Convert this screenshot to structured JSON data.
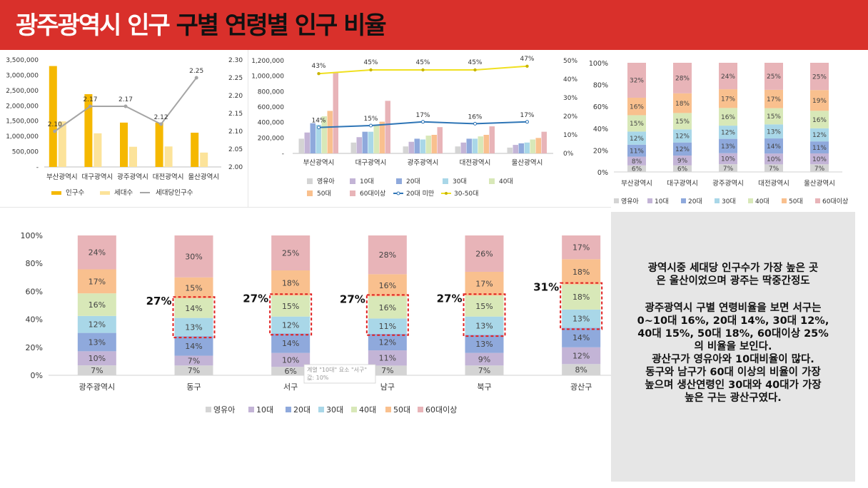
{
  "header": {
    "title_white": "광주광역시 인구",
    "title_dark": "구별 연령별 인구 비율"
  },
  "colors": {
    "banner": "#d9302b",
    "pop": "#f5b800",
    "hh": "#fce39a",
    "pph": "#a5a5a5",
    "ages": [
      "#d4d4d4",
      "#c3b4d6",
      "#8fa9dc",
      "#a9d7e8",
      "#d8e8b8",
      "#f9c08e",
      "#e8b4b8"
    ],
    "line_under20": "#2e75b6",
    "line_3050": "#f0e020",
    "highlight": "#e02020"
  },
  "chart_data": [
    {
      "id": "cities-pop",
      "type": "bar",
      "categories": [
        "부산광역시",
        "대구광역시",
        "광주광역시",
        "대전광역시",
        "울산광역시"
      ],
      "series": [
        {
          "name": "인구수",
          "values": [
            3300000,
            2380000,
            1450000,
            1450000,
            1120000
          ],
          "axis": "left"
        },
        {
          "name": "세대수",
          "values": [
            1490000,
            1100000,
            660000,
            670000,
            470000
          ],
          "axis": "left"
        },
        {
          "name": "세대당인구수",
          "values": [
            2.1,
            2.17,
            2.17,
            2.12,
            2.25
          ],
          "axis": "right",
          "kind": "line"
        }
      ],
      "data_labels": [
        "2.10",
        "2.17",
        "2.17",
        "2.12",
        "2.25"
      ],
      "yticks_left": [
        "3,500,000",
        "3,000,000",
        "2,500,000",
        "2,000,000",
        "1,500,000",
        "1,000,000",
        "500,000",
        "-"
      ],
      "yticks_right": [
        "2.30",
        "2.25",
        "2.20",
        "2.15",
        "2.10",
        "2.05",
        "2.00"
      ],
      "ylim_left": [
        0,
        3500000
      ],
      "ylim_right": [
        2.0,
        2.3
      ]
    },
    {
      "id": "cities-age",
      "type": "bar",
      "categories": [
        "부산광역시",
        "대구광역시",
        "광주광역시",
        "대전광역시",
        "울산광역시"
      ],
      "series": [
        {
          "name": "영유아",
          "values": [
            190000,
            140000,
            90000,
            90000,
            75000
          ]
        },
        {
          "name": "10대",
          "values": [
            270000,
            210000,
            150000,
            140000,
            110000
          ]
        },
        {
          "name": "20대",
          "values": [
            390000,
            280000,
            190000,
            190000,
            130000
          ]
        },
        {
          "name": "30대",
          "values": [
            370000,
            280000,
            180000,
            190000,
            140000
          ]
        },
        {
          "name": "40대",
          "values": [
            480000,
            370000,
            230000,
            220000,
            180000
          ]
        },
        {
          "name": "50대",
          "values": [
            550000,
            410000,
            240000,
            240000,
            200000
          ]
        },
        {
          "name": "60대이상",
          "values": [
            1050000,
            680000,
            340000,
            350000,
            280000
          ]
        },
        {
          "name": "20대 미만",
          "values": [
            14,
            15,
            17,
            16,
            17
          ],
          "axis": "right",
          "kind": "line"
        },
        {
          "name": "30-50대",
          "values": [
            43,
            45,
            45,
            45,
            47
          ],
          "axis": "right",
          "kind": "line"
        }
      ],
      "labels_under20": [
        "14%",
        "15%",
        "17%",
        "16%",
        "17%"
      ],
      "labels_3050": [
        "43%",
        "45%",
        "45%",
        "45%",
        "47%"
      ],
      "yticks_left": [
        "1,200,000",
        "1,000,000",
        "800,000",
        "600,000",
        "400,000",
        "200,000",
        "-"
      ],
      "yticks_right": [
        "50%",
        "40%",
        "30%",
        "20%",
        "10%",
        "0%"
      ],
      "ylim_left": [
        0,
        1200000
      ],
      "ylim_right": [
        0,
        50
      ]
    },
    {
      "id": "cities-ratio",
      "type": "bar",
      "stacked": true,
      "categories": [
        "부산광역시",
        "대구광역시",
        "광주광역시",
        "대전광역시",
        "울산광역시"
      ],
      "series": [
        {
          "name": "영유아",
          "values": [
            6,
            6,
            7,
            7,
            7
          ]
        },
        {
          "name": "10대",
          "values": [
            8,
            9,
            10,
            10,
            10
          ]
        },
        {
          "name": "20대",
          "values": [
            11,
            12,
            13,
            14,
            11
          ]
        },
        {
          "name": "30대",
          "values": [
            12,
            12,
            12,
            13,
            12
          ]
        },
        {
          "name": "40대",
          "values": [
            15,
            15,
            16,
            15,
            16
          ]
        },
        {
          "name": "50대",
          "values": [
            16,
            18,
            17,
            17,
            19
          ]
        },
        {
          "name": "60대이상",
          "values": [
            32,
            28,
            24,
            25,
            25
          ]
        }
      ],
      "label_min": 6,
      "yticks": [
        "100%",
        "80%",
        "60%",
        "40%",
        "20%",
        "0%"
      ],
      "ylim": [
        0,
        100
      ]
    },
    {
      "id": "districts-ratio",
      "type": "bar",
      "stacked": true,
      "categories": [
        "광주광역시",
        "동구",
        "서구",
        "남구",
        "북구",
        "광산구"
      ],
      "series": [
        {
          "name": "영유아",
          "values": [
            7,
            7,
            6,
            7,
            7,
            8
          ]
        },
        {
          "name": "10대",
          "values": [
            10,
            7,
            10,
            11,
            9,
            12
          ]
        },
        {
          "name": "20대",
          "values": [
            13,
            14,
            14,
            12,
            13,
            14
          ]
        },
        {
          "name": "30대",
          "values": [
            12,
            13,
            12,
            11,
            13,
            13
          ]
        },
        {
          "name": "40대",
          "values": [
            16,
            14,
            15,
            16,
            15,
            18
          ]
        },
        {
          "name": "50대",
          "values": [
            17,
            15,
            18,
            16,
            17,
            18
          ]
        },
        {
          "name": "60대이상",
          "values": [
            24,
            30,
            25,
            28,
            26,
            17
          ]
        }
      ],
      "label_min": 0,
      "highlights": [
        null,
        "27%",
        "27%",
        "27%",
        "27%",
        "31%"
      ],
      "highlight_counts": [
        0,
        2,
        2,
        2,
        2,
        2
      ],
      "tooltip": [
        "계열 \"10대\" 요소 \"서구\"",
        "값: 10%"
      ],
      "yticks": [
        "100%",
        "80%",
        "60%",
        "40%",
        "20%",
        "0%"
      ],
      "ylim": [
        0,
        100
      ]
    }
  ],
  "note": {
    "paragraphs": [
      "광역시중 세대당 인구수가 가장 높은 곳\n은 울산이었으며 광주는 딱중간정도",
      "광주광역시 구별 연령비율을 보면 서구는\n0~10대 16%, 20대 14%, 30대 12%,\n40대 15%, 50대 18%, 60대이상 25%\n의 비율을 보인다.\n광산구가 영유아와 10대비율이 많다.\n동구와 남구가 60대 이상의 비율이 가장\n높으며 생산연령인 30대와 40대가 가장\n높은 구는 광산구였다."
    ]
  }
}
